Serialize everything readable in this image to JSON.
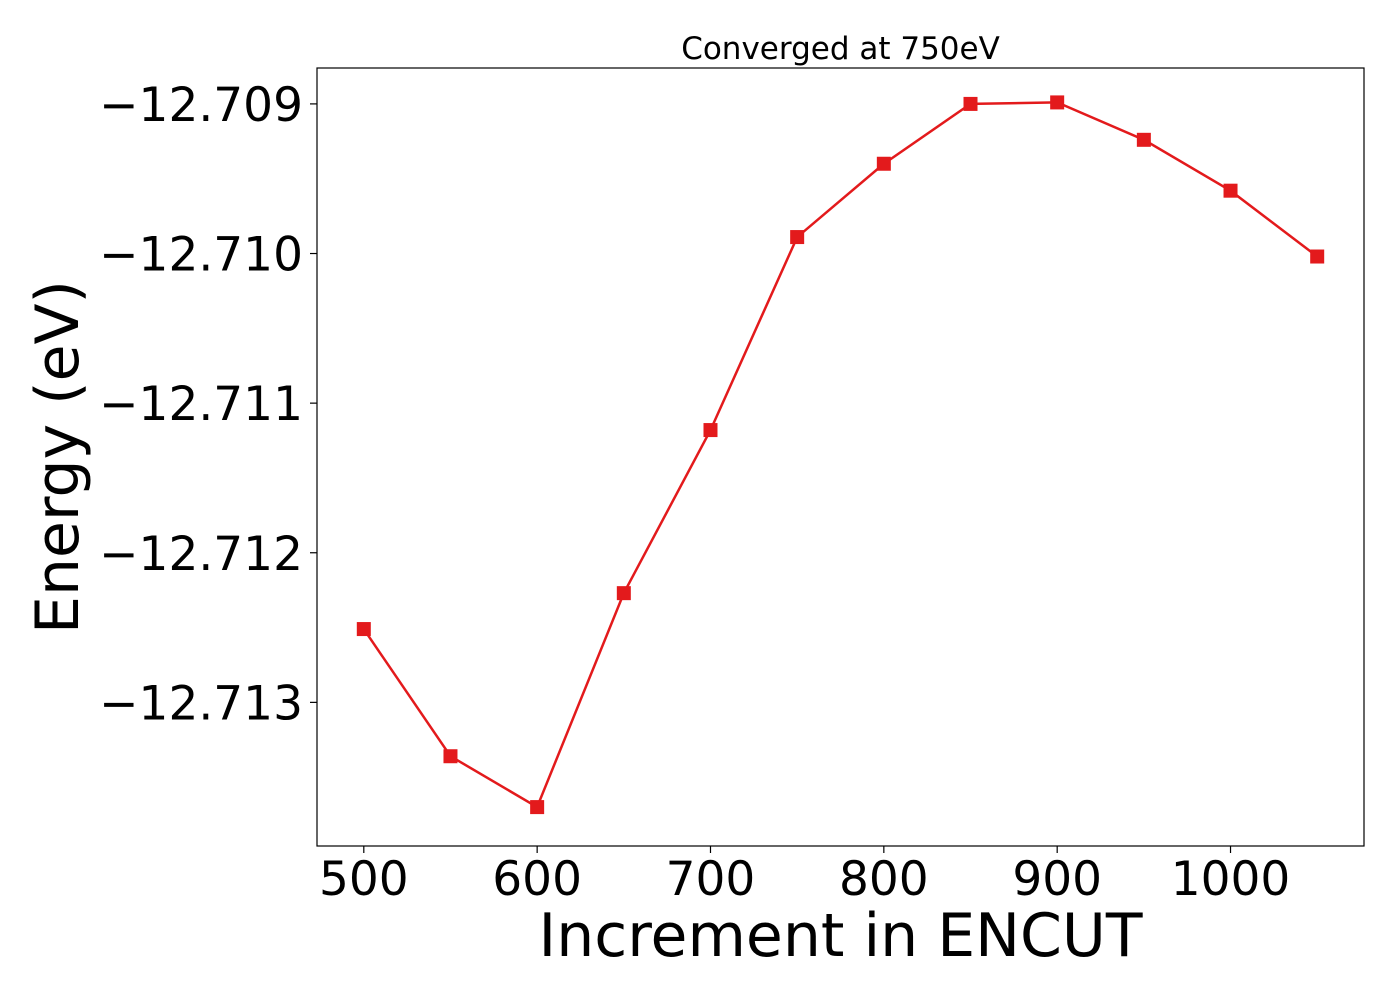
{
  "chart_data": {
    "type": "line",
    "title": "Converged at 750eV",
    "xlabel": "Increment in ENCUT",
    "ylabel": "Energy (eV)",
    "xlim": [
      473,
      1077
    ],
    "ylim": [
      -12.71396,
      -12.70876
    ],
    "xticks": [
      500,
      600,
      700,
      800,
      900,
      1000
    ],
    "yticks": [
      -12.713,
      -12.712,
      -12.711,
      -12.71,
      -12.709
    ],
    "xtick_labels": [
      "500",
      "600",
      "700",
      "800",
      "900",
      "1000"
    ],
    "ytick_labels": [
      "−12.713",
      "−12.712",
      "−12.711",
      "−12.710",
      "−12.709"
    ],
    "grid": false,
    "legend": "none",
    "series": [
      {
        "color": "#e31a1c",
        "marker": "square",
        "x": [
          500,
          550,
          600,
          650,
          700,
          750,
          800,
          850,
          900,
          950,
          1000,
          1050
        ],
        "y": [
          -12.71251,
          -12.71336,
          -12.7137,
          -12.71227,
          -12.71118,
          -12.70989,
          -12.7094,
          -12.709,
          -12.70899,
          -12.70924,
          -12.70958,
          -12.71002
        ]
      }
    ]
  }
}
